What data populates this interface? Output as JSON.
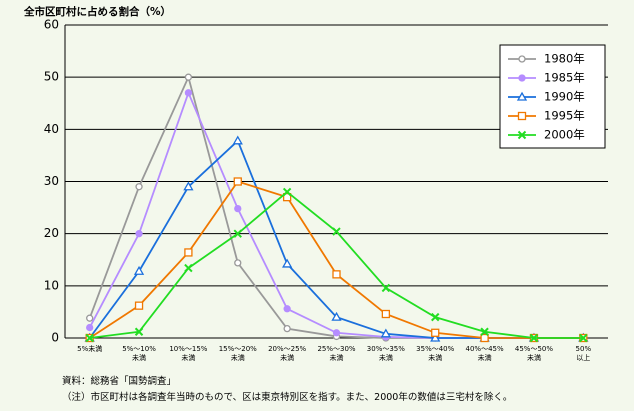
{
  "chart_data": {
    "type": "line",
    "title": "全市区町村に占める割合（%）",
    "categories": [
      "5%未満",
      "5%～10%\n未満",
      "10%～15%\n未満",
      "15%～20%\n未満",
      "20%～25%\n未満",
      "25%～30%\n未満",
      "30%～35%\n未満",
      "35%～40%\n未満",
      "40%～45%\n未満",
      "45%～50%\n未満",
      "50%\n以上"
    ],
    "series": [
      {
        "name": "1980年",
        "color": "#999999",
        "marker": "circle-open",
        "values": [
          3.8,
          29,
          50,
          14.4,
          1.8,
          0.3,
          0,
          0,
          0,
          0,
          0
        ]
      },
      {
        "name": "1985年",
        "color": "#b58cff",
        "marker": "circle-filled",
        "values": [
          2,
          20,
          47,
          24.8,
          5.6,
          1,
          0.2,
          0,
          0,
          0,
          0
        ]
      },
      {
        "name": "1990年",
        "color": "#1a6fdc",
        "marker": "triangle-open",
        "values": [
          0,
          12.8,
          29,
          37.8,
          14.2,
          4,
          0.8,
          0,
          0,
          0,
          0
        ]
      },
      {
        "name": "1995年",
        "color": "#f07800",
        "marker": "square-open",
        "values": [
          0,
          6.2,
          16.4,
          30,
          27,
          12.2,
          4.6,
          1,
          0,
          0,
          0
        ]
      },
      {
        "name": "2000年",
        "color": "#22dd22",
        "marker": "x",
        "values": [
          0,
          1.2,
          13.4,
          20,
          28,
          20.4,
          9.6,
          4,
          1.2,
          0,
          0
        ]
      }
    ],
    "ylim": [
      0,
      60
    ],
    "yticks": [
      0,
      10,
      20,
      30,
      40,
      50,
      60
    ],
    "grid": true,
    "legend": "upper-right",
    "notes": [
      "資料：総務省「国勢調査」",
      "（注）市区町村は各調査年当時のもので、区は東京特別区を指す。また、2000年の数値は三宅村を除く。"
    ]
  }
}
